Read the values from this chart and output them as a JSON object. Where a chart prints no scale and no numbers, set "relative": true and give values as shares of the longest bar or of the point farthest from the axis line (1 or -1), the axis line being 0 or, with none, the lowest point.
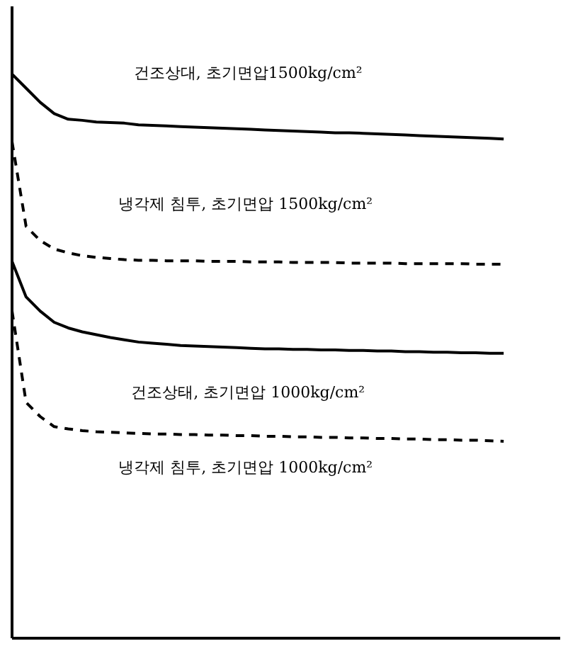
{
  "chart_data": {
    "type": "line",
    "relative": true,
    "grid": false,
    "marker": "none",
    "categories": [
      null,
      null,
      null,
      null,
      null,
      null,
      null,
      null,
      null,
      null,
      null,
      null,
      null,
      null,
      null,
      null,
      null,
      null,
      null,
      null,
      null,
      null,
      null,
      null,
      null,
      null,
      null,
      null,
      null,
      null,
      null,
      null,
      null,
      null,
      null,
      null
    ],
    "series": [
      {
        "name": "건조상대, 초기면압1500kg/cm²",
        "color": "#000000",
        "line_style": "solid",
        "values": [
          1.0,
          0.975,
          0.95,
          0.93,
          0.92,
          0.918,
          0.915,
          0.914,
          0.913,
          0.91,
          0.909,
          0.908,
          0.907,
          0.906,
          0.905,
          0.904,
          0.903,
          0.902,
          0.901,
          0.9,
          0.899,
          0.898,
          0.897,
          0.896,
          0.896,
          0.895,
          0.894,
          0.893,
          0.892,
          0.891,
          0.89,
          0.889,
          0.888,
          0.887,
          0.886,
          0.885
        ]
      },
      {
        "name": "냉각제  침투, 초기면압 1500kg/cm²",
        "color": "#000000",
        "line_style": "dashed",
        "values": [
          0.88,
          0.73,
          0.705,
          0.69,
          0.683,
          0.678,
          0.675,
          0.673,
          0.671,
          0.67,
          0.67,
          0.669,
          0.669,
          0.669,
          0.668,
          0.668,
          0.668,
          0.667,
          0.667,
          0.667,
          0.666,
          0.666,
          0.666,
          0.666,
          0.665,
          0.665,
          0.665,
          0.665,
          0.664,
          0.664,
          0.664,
          0.664,
          0.664,
          0.663,
          0.663,
          0.663
        ]
      },
      {
        "name": "건조상태, 초기면압 1000kg/cm²",
        "color": "#000000",
        "line_style": "solid",
        "values": [
          0.668,
          0.605,
          0.58,
          0.56,
          0.55,
          0.543,
          0.538,
          0.533,
          0.529,
          0.525,
          0.523,
          0.521,
          0.519,
          0.518,
          0.517,
          0.516,
          0.515,
          0.514,
          0.513,
          0.513,
          0.512,
          0.512,
          0.511,
          0.511,
          0.51,
          0.51,
          0.509,
          0.509,
          0.508,
          0.508,
          0.507,
          0.507,
          0.506,
          0.506,
          0.505,
          0.505
        ]
      },
      {
        "name": "냉각제  침투, 초기면압 1000kg/cm²",
        "color": "#000000",
        "line_style": "dashed",
        "values": [
          0.58,
          0.418,
          0.393,
          0.375,
          0.371,
          0.368,
          0.366,
          0.365,
          0.364,
          0.363,
          0.362,
          0.362,
          0.361,
          0.361,
          0.36,
          0.36,
          0.359,
          0.359,
          0.358,
          0.358,
          0.357,
          0.357,
          0.356,
          0.356,
          0.355,
          0.355,
          0.354,
          0.354,
          0.353,
          0.353,
          0.352,
          0.352,
          0.351,
          0.351,
          0.35,
          0.349
        ]
      }
    ]
  }
}
